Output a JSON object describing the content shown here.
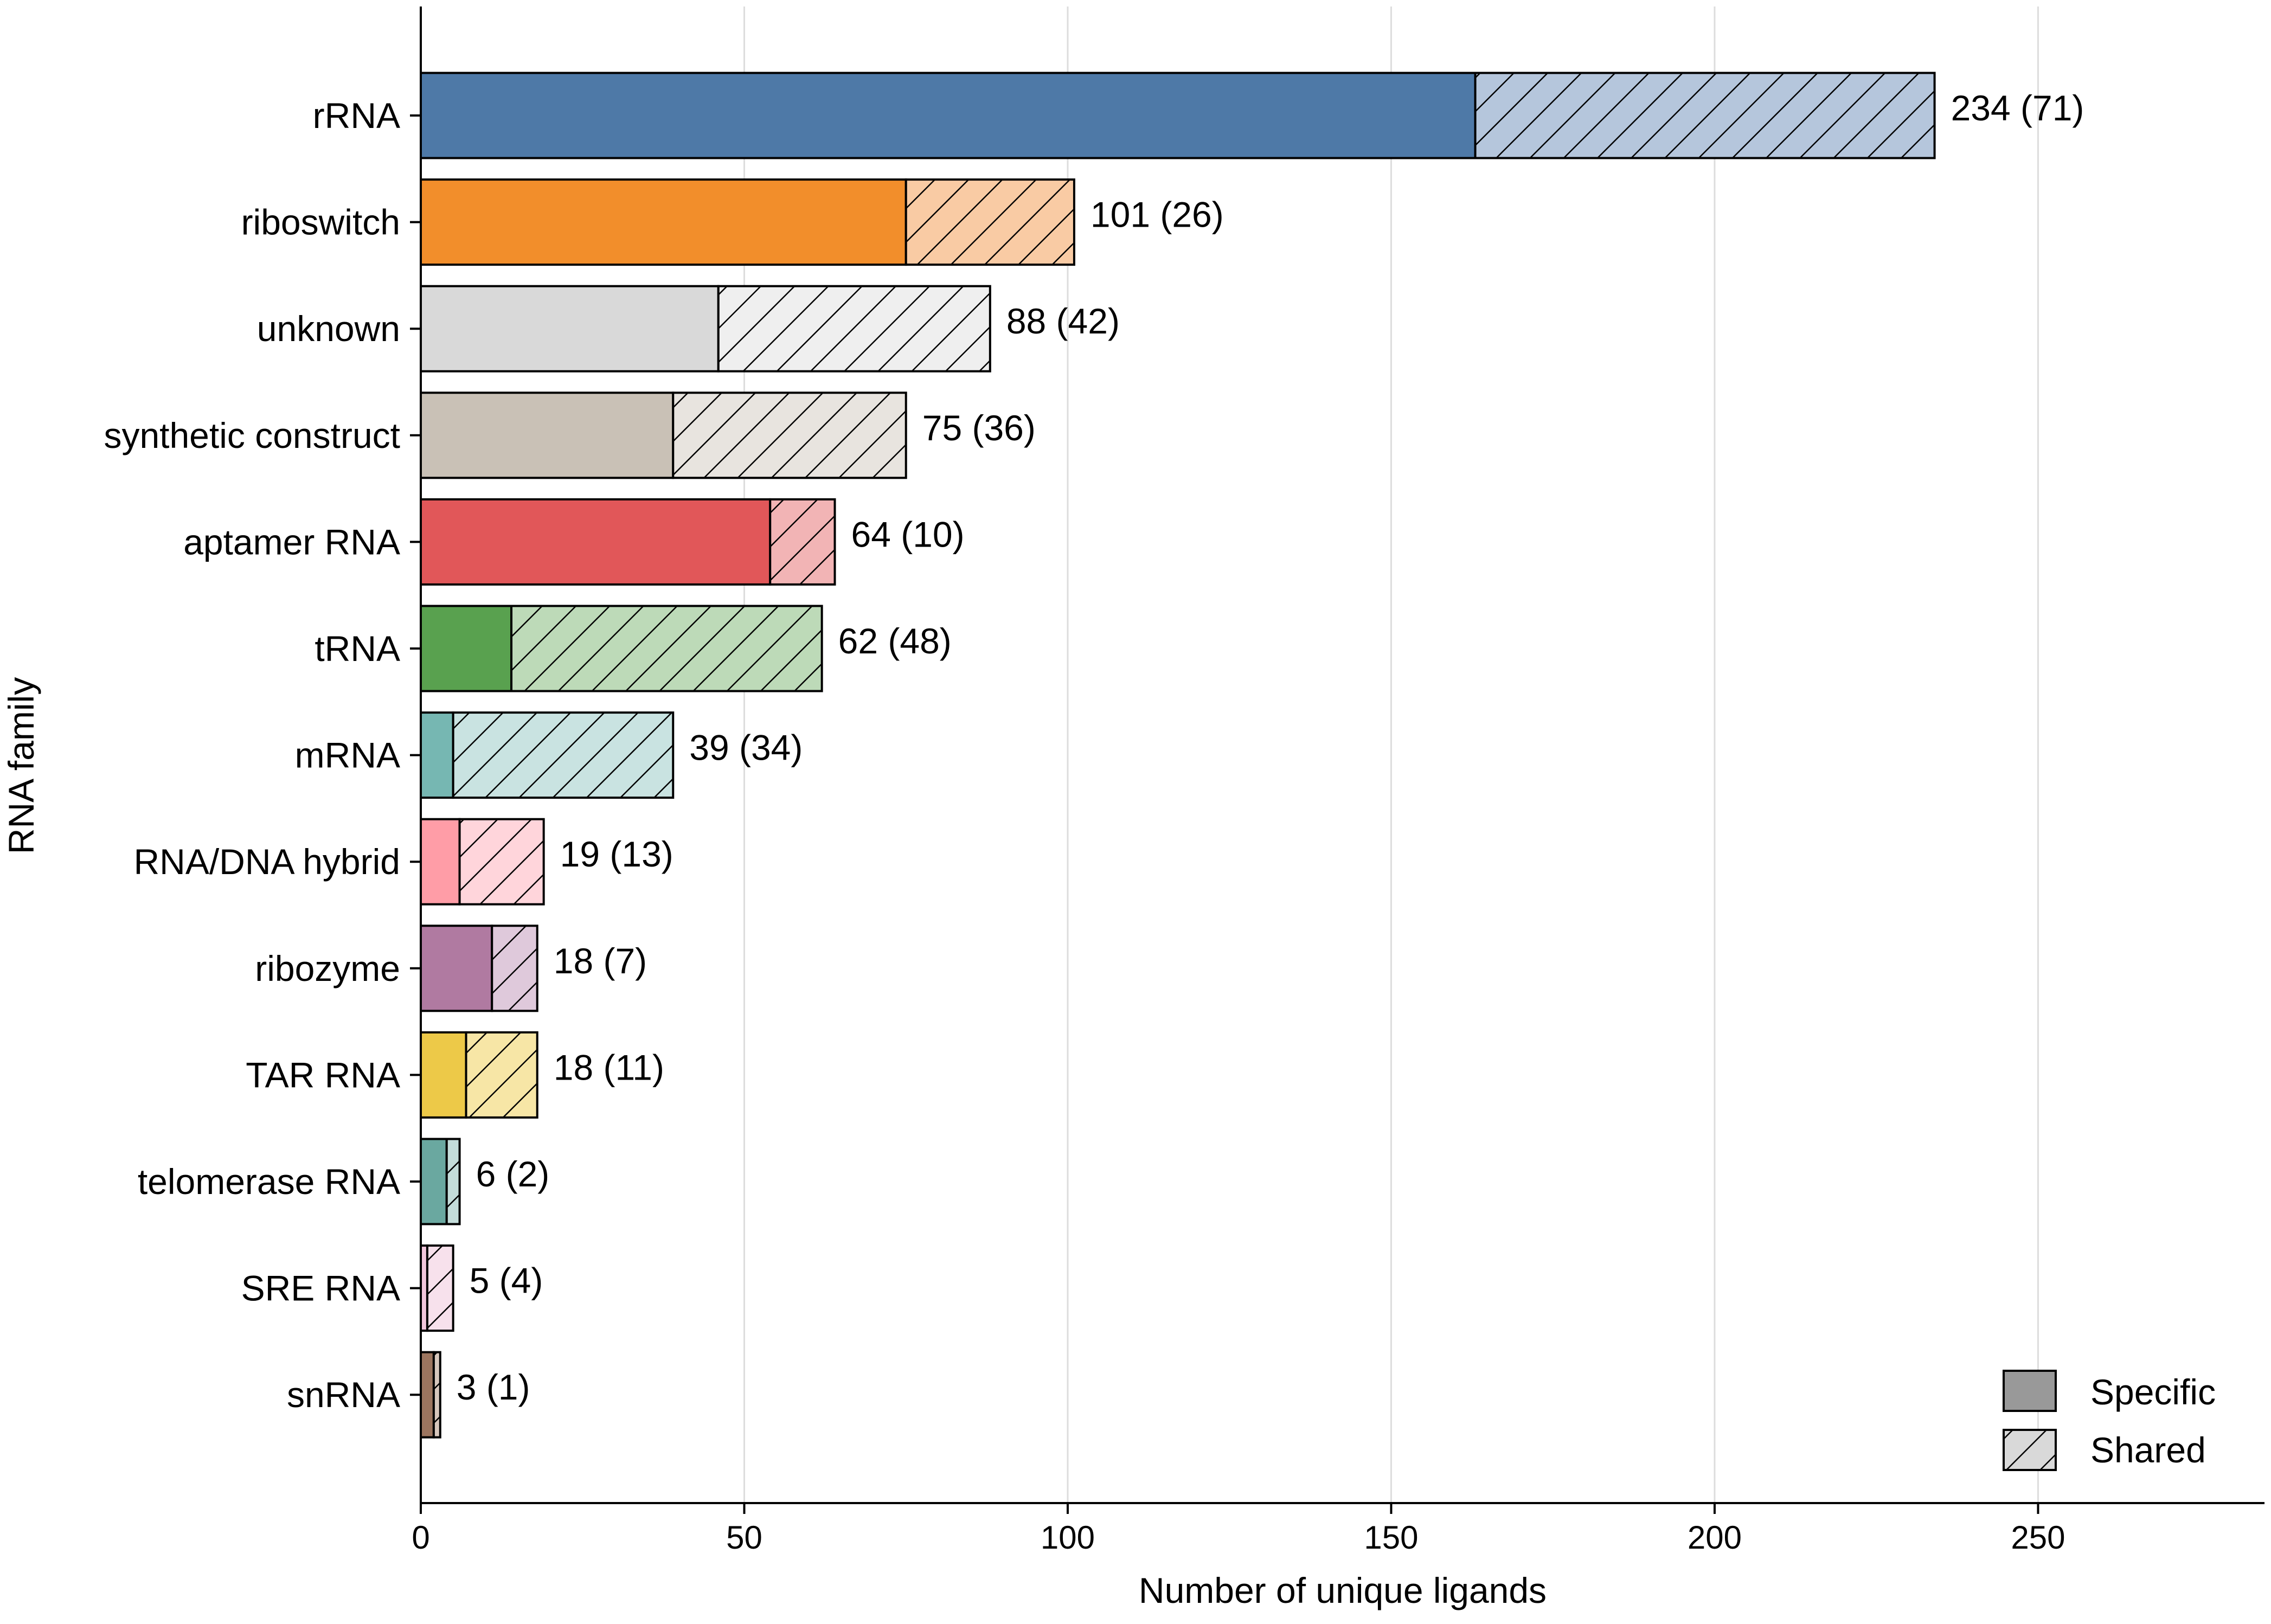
{
  "chart_data": {
    "type": "bar",
    "orientation": "horizontal",
    "stacked": true,
    "xlabel": "Number of unique ligands",
    "ylabel": "RNA family",
    "xlim": [
      0,
      285
    ],
    "xticks": [
      0,
      50,
      100,
      150,
      200,
      250
    ],
    "grid": "vertical",
    "legend_position": "bottom-right",
    "categories": [
      "rRNA",
      "riboswitch",
      "unknown",
      "synthetic construct",
      "aptamer RNA",
      "tRNA",
      "mRNA",
      "RNA/DNA hybrid",
      "ribozyme",
      "TAR RNA",
      "telomerase RNA",
      "SRE RNA",
      "snRNA"
    ],
    "totals": [
      234,
      101,
      88,
      75,
      64,
      62,
      39,
      19,
      18,
      18,
      6,
      5,
      3
    ],
    "series": [
      {
        "name": "Specific",
        "values": [
          163,
          75,
          46,
          39,
          54,
          14,
          5,
          6,
          11,
          7,
          4,
          1,
          2
        ]
      },
      {
        "name": "Shared",
        "values": [
          71,
          26,
          42,
          36,
          10,
          48,
          34,
          13,
          7,
          11,
          2,
          4,
          1
        ]
      }
    ],
    "bar_labels": [
      "234 (71)",
      "101 (26)",
      "88 (42)",
      "75 (36)",
      "64 (10)",
      "62 (48)",
      "39 (34)",
      "19 (13)",
      "18 (7)",
      "18 (11)",
      "6 (2)",
      "5 (4)",
      "3 (1)"
    ],
    "colors": {
      "specific": [
        "#4e79a7",
        "#f28e2b",
        "#d9d9d9",
        "#c9c1b6",
        "#e15759",
        "#59a14f",
        "#76b7b2",
        "#ff9da7",
        "#b07aa1",
        "#edc948",
        "#6aa8a0",
        "#f2c6dc",
        "#9c755f"
      ],
      "shared": [
        "#b5c6dc",
        "#f9cba4",
        "#efefef",
        "#e8e4df",
        "#f2b4b5",
        "#bddab8",
        "#c9e3e1",
        "#ffd5db",
        "#dfc9db",
        "#f7e6a6",
        "#c4ddda",
        "#f7e1ec",
        "#d7c7bd"
      ],
      "legend_specific": "#999999",
      "legend_shared": "#d9d9d9"
    }
  }
}
